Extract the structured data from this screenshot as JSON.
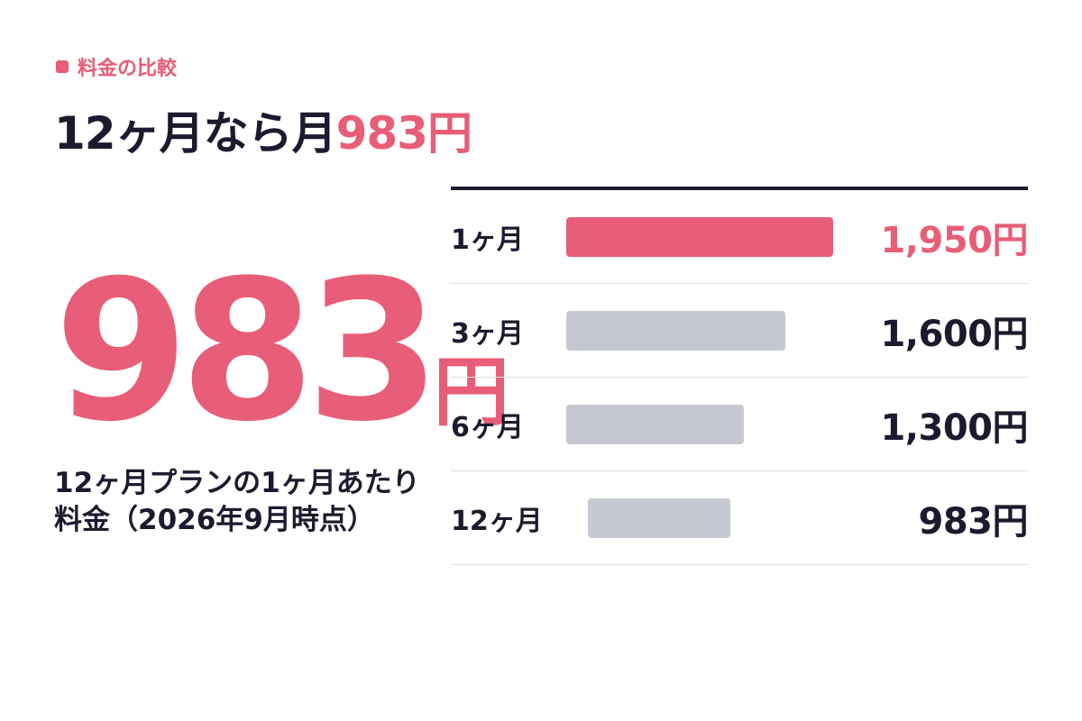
{
  "header": {
    "eyebrow": "料金の比較",
    "title_prefix": "12ヶ月なら月",
    "title_highlight": "983円"
  },
  "hero": {
    "value": "983",
    "unit": "円",
    "caption": "12ヶ月プランの1ヶ月あたり料金（2026年9月時点）"
  },
  "colors": {
    "accent": "#e85d77",
    "bar_default": "#c6c8d1",
    "text": "#1c1a2e"
  },
  "chart_data": {
    "type": "bar",
    "orientation": "horizontal",
    "categories": [
      "1ヶ月",
      "3ヶ月",
      "6ヶ月",
      "12ヶ月"
    ],
    "values": [
      1950,
      1600,
      1300,
      983
    ],
    "value_labels": [
      "1,950円",
      "1,600円",
      "1,300円",
      "983円"
    ],
    "highlight_index": 0,
    "xlim": [
      0,
      1950
    ]
  }
}
